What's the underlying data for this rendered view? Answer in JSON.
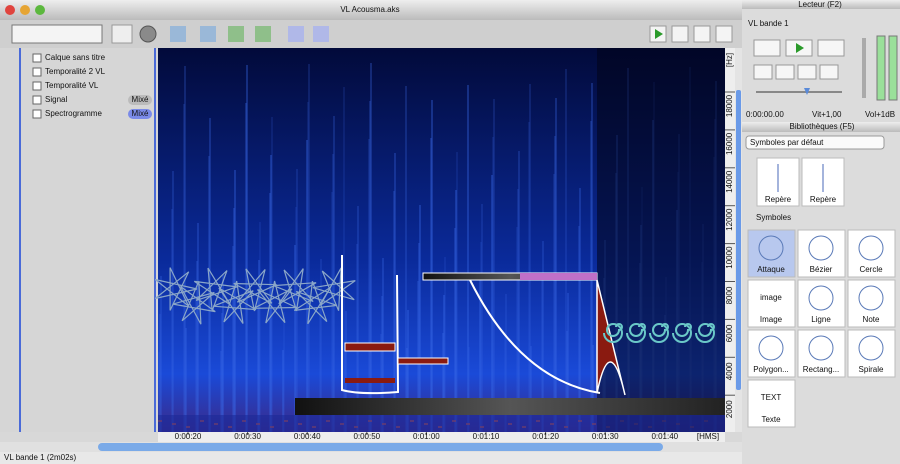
{
  "window": {
    "title": "VL Acousma.aks"
  },
  "layers": [
    {
      "name": "Calque sans titre"
    },
    {
      "name": "Temporalité 2 VL"
    },
    {
      "name": "Temporalité VL"
    },
    {
      "name": "Signal",
      "badge": "Mixé"
    },
    {
      "name": "Spectrogramme",
      "badge": "Mixé"
    }
  ],
  "frequency_ruler": {
    "unit": "[Hz]",
    "labels": [
      "18000",
      "16000",
      "14000",
      "12000",
      "10000",
      "8000",
      "6000",
      "4000",
      "2000"
    ]
  },
  "time_ruler": {
    "labels": [
      "0:00:20",
      "0:00:30",
      "0:00:40",
      "0:00:50",
      "0:01:00",
      "0:01:10",
      "0:01:20",
      "0:01:30",
      "0:01:40"
    ],
    "unit": "[HMS]"
  },
  "status": "VL bande 1 (2m02s)",
  "player": {
    "title": "Lecteur (F2)",
    "track": "VL bande 1",
    "time": "0:00:00.00",
    "speed": "Vit+1,00",
    "volume": "Vol+1dB"
  },
  "library": {
    "title": "Bibliothèques (F5)",
    "set": "Symboles par défaut",
    "markers": [
      "Repère",
      "Repère"
    ],
    "section": "Symboles",
    "symbols": [
      {
        "name": "Attaque"
      },
      {
        "name": "Bézier"
      },
      {
        "name": "Cercle"
      },
      {
        "name": "Image",
        "icon_text": "image"
      },
      {
        "name": "Ligne"
      },
      {
        "name": "Note"
      },
      {
        "name": "Polygon..."
      },
      {
        "name": "Rectang..."
      },
      {
        "name": "Spirale"
      },
      {
        "name": "Texte",
        "icon_text": "TEXT"
      }
    ]
  }
}
